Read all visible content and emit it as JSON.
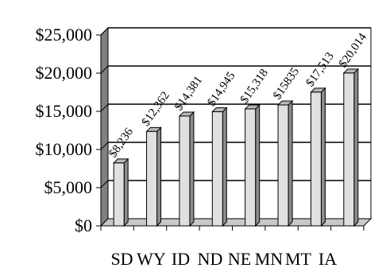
{
  "chart_data": {
    "type": "bar",
    "style": "3d",
    "categories": [
      "SD",
      "WY",
      "ID",
      "ND",
      "NE",
      "MN",
      "MT",
      "IA"
    ],
    "values": [
      8236,
      12362,
      14381,
      14945,
      15318,
      15835,
      17513,
      20014
    ],
    "data_labels": [
      "$8,236",
      "$12,362",
      "$14,381",
      "$14,945",
      "$15,318",
      "$15835",
      "$17,513",
      "$20,014"
    ],
    "y_ticks": [
      "$0",
      "$5,000",
      "$10,000",
      "$15,000",
      "$20,000",
      "$25,000"
    ],
    "ylim": [
      0,
      25000
    ],
    "grid": true,
    "legend": "none",
    "title": "",
    "xlabel": "",
    "ylabel": "",
    "colors": {
      "bar_front": "#e0e0e0",
      "bar_side": "#8c8c8c",
      "bar_top": "#b8b8b8",
      "wall_side": "#808080",
      "floor": "#c8c8c8",
      "grid": "#000000"
    }
  }
}
